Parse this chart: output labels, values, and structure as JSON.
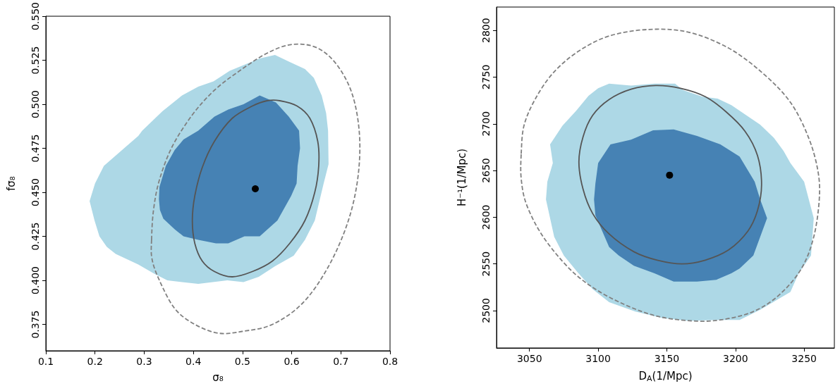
{
  "chart_data": [
    {
      "type": "area",
      "xlabel": "σ₈",
      "ylabel": "fσ₈",
      "xlim": [
        0.1,
        0.8
      ],
      "ylim": [
        0.36,
        0.55
      ],
      "xticks": [
        0.1,
        0.2,
        0.3,
        0.4,
        0.5,
        0.6,
        0.7,
        0.8
      ],
      "yticks": [
        0.375,
        {
          "value": 0.4,
          "label": "0.400"
        },
        0.425,
        {
          "value": 0.45,
          "label": "0.450"
        },
        0.475,
        {
          "value": 0.5,
          "label": "0.500"
        },
        0.525,
        {
          "value": 0.55,
          "label": "0.550"
        }
      ],
      "grid": false,
      "series": [
        {
          "type": "area",
          "color": "#add8e6",
          "x": [
            0.189,
            0.2,
            0.218,
            0.255,
            0.288,
            0.296,
            0.337,
            0.377,
            0.41,
            0.441,
            0.474,
            0.535,
            0.566,
            0.596,
            0.627,
            0.645,
            0.661,
            0.67,
            0.674,
            0.675,
            0.665,
            0.647,
            0.627,
            0.604,
            0.566,
            0.533,
            0.502,
            0.469,
            0.41,
            0.377,
            0.347,
            0.319,
            0.288,
            0.242,
            0.224,
            0.209,
            0.199
          ],
          "values": [
            0.445,
            0.455,
            0.465,
            0.474,
            0.482,
            0.485,
            0.496,
            0.505,
            0.51,
            0.513,
            0.519,
            0.526,
            0.528,
            0.524,
            0.52,
            0.515,
            0.505,
            0.495,
            0.485,
            0.466,
            0.455,
            0.434,
            0.423,
            0.414,
            0.408,
            0.402,
            0.399,
            0.4,
            0.398,
            0.399,
            0.4,
            0.404,
            0.409,
            0.415,
            0.419,
            0.425,
            0.434
          ]
        },
        {
          "type": "area",
          "color": "#4682b4",
          "x": [
            0.33,
            0.331,
            0.344,
            0.362,
            0.38,
            0.41,
            0.443,
            0.471,
            0.502,
            0.535,
            0.568,
            0.594,
            0.615,
            0.617,
            0.612,
            0.61,
            0.599,
            0.571,
            0.535,
            0.504,
            0.471,
            0.446,
            0.41,
            0.38,
            0.362,
            0.339,
            0.332
          ],
          "values": [
            0.446,
            0.453,
            0.465,
            0.474,
            0.48,
            0.485,
            0.493,
            0.497,
            0.5,
            0.505,
            0.501,
            0.493,
            0.485,
            0.475,
            0.465,
            0.455,
            0.448,
            0.434,
            0.425,
            0.425,
            0.421,
            0.421,
            0.423,
            0.425,
            0.429,
            0.435,
            0.44
          ]
        },
        {
          "type": "scatter",
          "color": "#000000",
          "marker": "circle",
          "x": [
            0.526
          ],
          "values": [
            0.452
          ]
        }
      ]
    },
    {
      "type": "area",
      "xlabel": "D$_{A}$(1/Mpc)",
      "ylabel": "H⁻¹(1/Mpc)",
      "xlim": [
        3026,
        3272
      ],
      "ylim": [
        2460,
        2825
      ],
      "xticks": [
        3050,
        3100,
        3150,
        3200,
        3250
      ],
      "yticks": [
        2500,
        2550,
        2600,
        2650,
        2700,
        2750,
        2800
      ],
      "grid": false,
      "series": [
        {
          "type": "area",
          "color": "#add8e6",
          "x": [
            3065,
            3067,
            3063,
            3062,
            3065,
            3068,
            3075,
            3085,
            3096,
            3108,
            3127,
            3147,
            3166,
            3186,
            3203,
            3218,
            3240,
            3246,
            3255,
            3257,
            3250,
            3240,
            3235,
            3228,
            3218,
            3197,
            3187,
            3176,
            3162,
            3156,
            3141,
            3124,
            3108,
            3100,
            3093,
            3084,
            3074
          ],
          "values": [
            2678,
            2658,
            2638,
            2619,
            2599,
            2579,
            2559,
            2541,
            2523,
            2509,
            2499,
            2492,
            2489,
            2490,
            2490,
            2501,
            2520,
            2540,
            2559,
            2599,
            2638,
            2658,
            2671,
            2685,
            2699,
            2720,
            2727,
            2729,
            2736,
            2743,
            2743,
            2741,
            2743,
            2738,
            2730,
            2714,
            2698
          ]
        },
        {
          "type": "area",
          "color": "#4682b4",
          "x": [
            3100,
            3109,
            3124,
            3140,
            3155,
            3172,
            3189,
            3203,
            3214,
            3218,
            3223,
            3218,
            3213,
            3203,
            3197,
            3186,
            3172,
            3155,
            3141,
            3126,
            3115,
            3108,
            3103,
            3098,
            3097,
            3098
          ],
          "values": [
            2658,
            2678,
            2683,
            2693,
            2694,
            2687,
            2678,
            2665,
            2638,
            2619,
            2599,
            2579,
            2559,
            2545,
            2540,
            2533,
            2531,
            2531,
            2540,
            2548,
            2559,
            2568,
            2585,
            2602,
            2619,
            2636
          ]
        },
        {
          "type": "scatter",
          "color": "#000000",
          "marker": "circle",
          "x": [
            3152
          ],
          "values": [
            2645
          ]
        }
      ]
    }
  ]
}
